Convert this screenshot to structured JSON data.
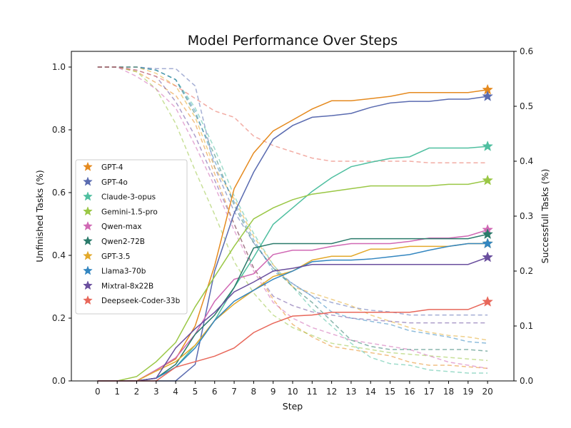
{
  "chart_data": {
    "type": "line",
    "title": "Model Performance Over Steps",
    "xlabel": "Step",
    "ylabel_left": "Unfinished Tasks (%)",
    "ylabel_right": "Successfull Tasks (%)",
    "x": [
      0,
      1,
      2,
      3,
      4,
      5,
      6,
      7,
      8,
      9,
      10,
      11,
      12,
      13,
      14,
      15,
      16,
      17,
      18,
      19,
      20
    ],
    "x_ticks": [
      "0",
      "1",
      "2",
      "3",
      "4",
      "5",
      "6",
      "7",
      "8",
      "9",
      "10",
      "11",
      "12",
      "13",
      "14",
      "15",
      "16",
      "17",
      "18",
      "19",
      "20"
    ],
    "ylim_left": [
      0,
      1.05
    ],
    "ylim_right": [
      0,
      0.6
    ],
    "y_ticks_left": [
      "0.0",
      "0.2",
      "0.4",
      "0.6",
      "0.8",
      "1.0"
    ],
    "y_ticks_right": [
      "0.0",
      "0.1",
      "0.2",
      "0.3",
      "0.4",
      "0.5",
      "0.6"
    ],
    "legend_position": "center-left",
    "series": [
      {
        "name": "GPT-4",
        "color": "#e58a1f",
        "success": [
          0,
          0,
          0,
          0.02,
          0.04,
          0.1,
          0.21,
          0.35,
          0.415,
          0.455,
          0.475,
          0.495,
          0.51,
          0.51,
          0.514,
          0.518,
          0.525,
          0.525,
          0.525,
          0.525,
          0.53
        ],
        "unfinished": [
          1.0,
          1.0,
          0.985,
          0.95,
          0.91,
          0.82,
          0.66,
          0.5,
          0.36,
          0.26,
          0.18,
          0.14,
          0.11,
          0.1,
          0.09,
          0.08,
          0.06,
          0.05,
          0.05,
          0.045,
          0.04
        ]
      },
      {
        "name": "GPT-4o",
        "color": "#5a6bb0",
        "success": [
          0,
          0,
          0,
          0,
          0,
          0.03,
          0.2,
          0.305,
          0.38,
          0.44,
          0.465,
          0.48,
          0.483,
          0.487,
          0.498,
          0.506,
          0.509,
          0.509,
          0.513,
          0.513,
          0.518
        ],
        "unfinished": [
          1.0,
          1.0,
          1.0,
          0.995,
          0.995,
          0.94,
          0.68,
          0.54,
          0.44,
          0.36,
          0.31,
          0.27,
          0.25,
          0.235,
          0.225,
          0.22,
          0.21,
          0.21,
          0.21,
          0.21,
          0.21
        ]
      },
      {
        "name": "Claude-3-opus",
        "color": "#4fbfa0",
        "success": [
          0,
          0,
          0,
          0.005,
          0.025,
          0.065,
          0.11,
          0.17,
          0.225,
          0.285,
          0.315,
          0.345,
          0.37,
          0.39,
          0.398,
          0.405,
          0.408,
          0.424,
          0.424,
          0.424,
          0.427
        ],
        "unfinished": [
          1.0,
          1.0,
          1.0,
          0.99,
          0.96,
          0.87,
          0.74,
          0.59,
          0.47,
          0.37,
          0.3,
          0.23,
          0.175,
          0.12,
          0.075,
          0.055,
          0.05,
          0.035,
          0.03,
          0.025,
          0.025
        ]
      },
      {
        "name": "Gemini-1.5-pro",
        "color": "#9ac745",
        "success": [
          0,
          0,
          0.008,
          0.035,
          0.07,
          0.135,
          0.19,
          0.245,
          0.295,
          0.315,
          0.33,
          0.34,
          0.345,
          0.35,
          0.355,
          0.355,
          0.355,
          0.355,
          0.358,
          0.358,
          0.365
        ],
        "unfinished": [
          1.0,
          1.0,
          0.985,
          0.93,
          0.82,
          0.67,
          0.53,
          0.38,
          0.28,
          0.21,
          0.17,
          0.145,
          0.12,
          0.11,
          0.1,
          0.09,
          0.085,
          0.08,
          0.075,
          0.07,
          0.065
        ]
      },
      {
        "name": "Qwen-max",
        "color": "#d068b4",
        "success": [
          0,
          0,
          0,
          0.02,
          0.042,
          0.085,
          0.145,
          0.185,
          0.195,
          0.23,
          0.238,
          0.238,
          0.245,
          0.25,
          0.25,
          0.25,
          0.254,
          0.26,
          0.26,
          0.264,
          0.275
        ],
        "unfinished": [
          1.0,
          1.0,
          0.97,
          0.93,
          0.87,
          0.75,
          0.62,
          0.48,
          0.35,
          0.25,
          0.2,
          0.17,
          0.15,
          0.13,
          0.12,
          0.11,
          0.1,
          0.08,
          0.06,
          0.05,
          0.04
        ]
      },
      {
        "name": "Qwen2-72B",
        "color": "#2a7a6a",
        "success": [
          0,
          0,
          0,
          0.005,
          0.03,
          0.085,
          0.12,
          0.17,
          0.242,
          0.25,
          0.25,
          0.25,
          0.25,
          0.259,
          0.259,
          0.259,
          0.259,
          0.259,
          0.259,
          0.259,
          0.267
        ],
        "unfinished": [
          1.0,
          1.0,
          1.0,
          0.99,
          0.96,
          0.85,
          0.72,
          0.56,
          0.44,
          0.36,
          0.3,
          0.25,
          0.19,
          0.13,
          0.11,
          0.1,
          0.1,
          0.1,
          0.1,
          0.1,
          0.095
        ]
      },
      {
        "name": "GPT-3.5",
        "color": "#e3a92b",
        "success": [
          0,
          0,
          0,
          0.018,
          0.035,
          0.065,
          0.11,
          0.14,
          0.165,
          0.19,
          0.2,
          0.22,
          0.227,
          0.227,
          0.24,
          0.24,
          0.245,
          0.245,
          0.245,
          0.25,
          0.25
        ],
        "unfinished": [
          1.0,
          1.0,
          1.0,
          0.98,
          0.94,
          0.84,
          0.68,
          0.58,
          0.46,
          0.37,
          0.3,
          0.28,
          0.26,
          0.24,
          0.21,
          0.19,
          0.17,
          0.155,
          0.145,
          0.14,
          0.13
        ]
      },
      {
        "name": "Llama3-70b",
        "color": "#3386c0",
        "success": [
          0,
          0,
          0,
          0.005,
          0.025,
          0.06,
          0.11,
          0.145,
          0.165,
          0.185,
          0.2,
          0.217,
          0.22,
          0.22,
          0.222,
          0.226,
          0.23,
          0.238,
          0.245,
          0.25,
          0.25
        ],
        "unfinished": [
          1.0,
          1.0,
          1.0,
          0.99,
          0.96,
          0.86,
          0.7,
          0.57,
          0.45,
          0.35,
          0.31,
          0.27,
          0.22,
          0.2,
          0.19,
          0.18,
          0.16,
          0.15,
          0.14,
          0.125,
          0.12
        ]
      },
      {
        "name": "Mixtral-8x22B",
        "color": "#6a4f9e",
        "success": [
          0,
          0,
          0,
          0.005,
          0.06,
          0.095,
          0.125,
          0.162,
          0.18,
          0.2,
          0.205,
          0.212,
          0.212,
          0.212,
          0.212,
          0.212,
          0.212,
          0.212,
          0.212,
          0.212,
          0.225
        ],
        "unfinished": [
          1.0,
          1.0,
          0.99,
          0.97,
          0.89,
          0.78,
          0.64,
          0.5,
          0.36,
          0.27,
          0.24,
          0.22,
          0.21,
          0.2,
          0.195,
          0.19,
          0.185,
          0.185,
          0.185,
          0.185,
          0.185
        ]
      },
      {
        "name": "Deepseek-Coder-33b",
        "color": "#e8675a",
        "success": [
          0,
          0,
          0,
          0,
          0.025,
          0.035,
          0.045,
          0.06,
          0.088,
          0.105,
          0.118,
          0.12,
          0.125,
          0.125,
          0.125,
          0.125,
          0.125,
          0.13,
          0.13,
          0.13,
          0.144
        ],
        "unfinished": [
          1.0,
          1.0,
          0.99,
          0.97,
          0.94,
          0.9,
          0.86,
          0.84,
          0.78,
          0.75,
          0.73,
          0.71,
          0.7,
          0.7,
          0.7,
          0.7,
          0.7,
          0.695,
          0.695,
          0.695,
          0.695
        ]
      }
    ]
  }
}
